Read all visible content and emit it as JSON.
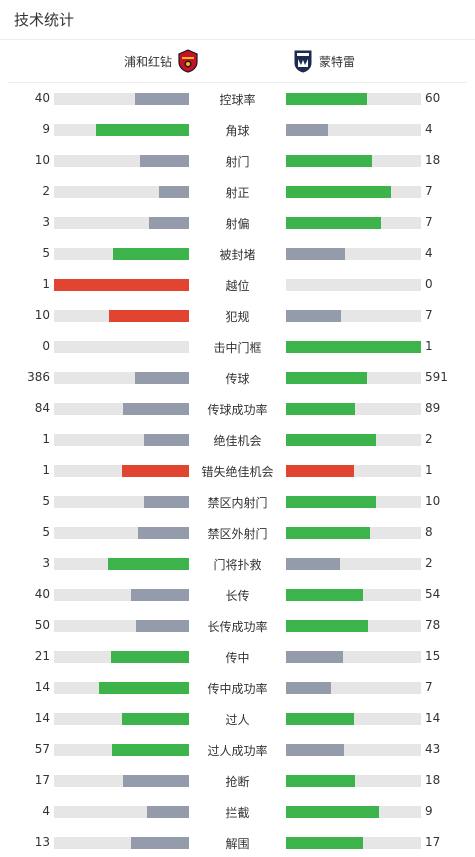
{
  "header": {
    "title": "技术统计"
  },
  "teams": {
    "home": {
      "name": "浦和红钻",
      "logo_icon": "urawa-reds-crest-icon"
    },
    "away": {
      "name": "蒙特雷",
      "logo_icon": "monterrey-crest-icon"
    }
  },
  "colors": {
    "leading": "#3cb44b",
    "trailing": "#949cab",
    "negative_leading": "#e14431",
    "track": "#e6e6e6"
  },
  "stats": [
    {
      "label": "控球率",
      "home": "40",
      "away": "60",
      "home_fill": 0.4,
      "away_fill": 0.6,
      "home_color": "trailing",
      "away_color": "leading"
    },
    {
      "label": "角球",
      "home": "9",
      "away": "4",
      "home_fill": 0.69,
      "away_fill": 0.31,
      "home_color": "leading",
      "away_color": "trailing"
    },
    {
      "label": "射门",
      "home": "10",
      "away": "18",
      "home_fill": 0.36,
      "away_fill": 0.64,
      "home_color": "trailing",
      "away_color": "leading"
    },
    {
      "label": "射正",
      "home": "2",
      "away": "7",
      "home_fill": 0.22,
      "away_fill": 0.78,
      "home_color": "trailing",
      "away_color": "leading"
    },
    {
      "label": "射偏",
      "home": "3",
      "away": "7",
      "home_fill": 0.3,
      "away_fill": 0.7,
      "home_color": "trailing",
      "away_color": "leading"
    },
    {
      "label": "被封堵",
      "home": "5",
      "away": "4",
      "home_fill": 0.56,
      "away_fill": 0.44,
      "home_color": "leading",
      "away_color": "trailing"
    },
    {
      "label": "越位",
      "home": "1",
      "away": "0",
      "home_fill": 1.0,
      "away_fill": 0.0,
      "home_color": "negative_leading",
      "away_color": "trailing"
    },
    {
      "label": "犯规",
      "home": "10",
      "away": "7",
      "home_fill": 0.59,
      "away_fill": 0.41,
      "home_color": "negative_leading",
      "away_color": "trailing"
    },
    {
      "label": "击中门框",
      "home": "0",
      "away": "1",
      "home_fill": 0.0,
      "away_fill": 1.0,
      "home_color": "trailing",
      "away_color": "leading"
    },
    {
      "label": "传球",
      "home": "386",
      "away": "591",
      "home_fill": 0.4,
      "away_fill": 0.6,
      "home_color": "trailing",
      "away_color": "leading"
    },
    {
      "label": "传球成功率",
      "home": "84",
      "away": "89",
      "home_fill": 0.49,
      "away_fill": 0.51,
      "home_color": "trailing",
      "away_color": "leading"
    },
    {
      "label": "绝佳机会",
      "home": "1",
      "away": "2",
      "home_fill": 0.33,
      "away_fill": 0.67,
      "home_color": "trailing",
      "away_color": "leading"
    },
    {
      "label": "错失绝佳机会",
      "home": "1",
      "away": "1",
      "home_fill": 0.5,
      "away_fill": 0.5,
      "home_color": "negative_leading",
      "away_color": "negative_leading"
    },
    {
      "label": "禁区内射门",
      "home": "5",
      "away": "10",
      "home_fill": 0.33,
      "away_fill": 0.67,
      "home_color": "trailing",
      "away_color": "leading"
    },
    {
      "label": "禁区外射门",
      "home": "5",
      "away": "8",
      "home_fill": 0.38,
      "away_fill": 0.62,
      "home_color": "trailing",
      "away_color": "leading"
    },
    {
      "label": "门将扑救",
      "home": "3",
      "away": "2",
      "home_fill": 0.6,
      "away_fill": 0.4,
      "home_color": "leading",
      "away_color": "trailing"
    },
    {
      "label": "长传",
      "home": "40",
      "away": "54",
      "home_fill": 0.43,
      "away_fill": 0.57,
      "home_color": "trailing",
      "away_color": "leading"
    },
    {
      "label": "长传成功率",
      "home": "50",
      "away": "78",
      "home_fill": 0.39,
      "away_fill": 0.61,
      "home_color": "trailing",
      "away_color": "leading"
    },
    {
      "label": "传中",
      "home": "21",
      "away": "15",
      "home_fill": 0.58,
      "away_fill": 0.42,
      "home_color": "leading",
      "away_color": "trailing"
    },
    {
      "label": "传中成功率",
      "home": "14",
      "away": "7",
      "home_fill": 0.67,
      "away_fill": 0.33,
      "home_color": "leading",
      "away_color": "trailing"
    },
    {
      "label": "过人",
      "home": "14",
      "away": "14",
      "home_fill": 0.5,
      "away_fill": 0.5,
      "home_color": "leading",
      "away_color": "leading"
    },
    {
      "label": "过人成功率",
      "home": "57",
      "away": "43",
      "home_fill": 0.57,
      "away_fill": 0.43,
      "home_color": "leading",
      "away_color": "trailing"
    },
    {
      "label": "抢断",
      "home": "17",
      "away": "18",
      "home_fill": 0.49,
      "away_fill": 0.51,
      "home_color": "trailing",
      "away_color": "leading"
    },
    {
      "label": "拦截",
      "home": "4",
      "away": "9",
      "home_fill": 0.31,
      "away_fill": 0.69,
      "home_color": "trailing",
      "away_color": "leading"
    },
    {
      "label": "解围",
      "home": "13",
      "away": "17",
      "home_fill": 0.43,
      "away_fill": 0.57,
      "home_color": "trailing",
      "away_color": "leading"
    }
  ]
}
